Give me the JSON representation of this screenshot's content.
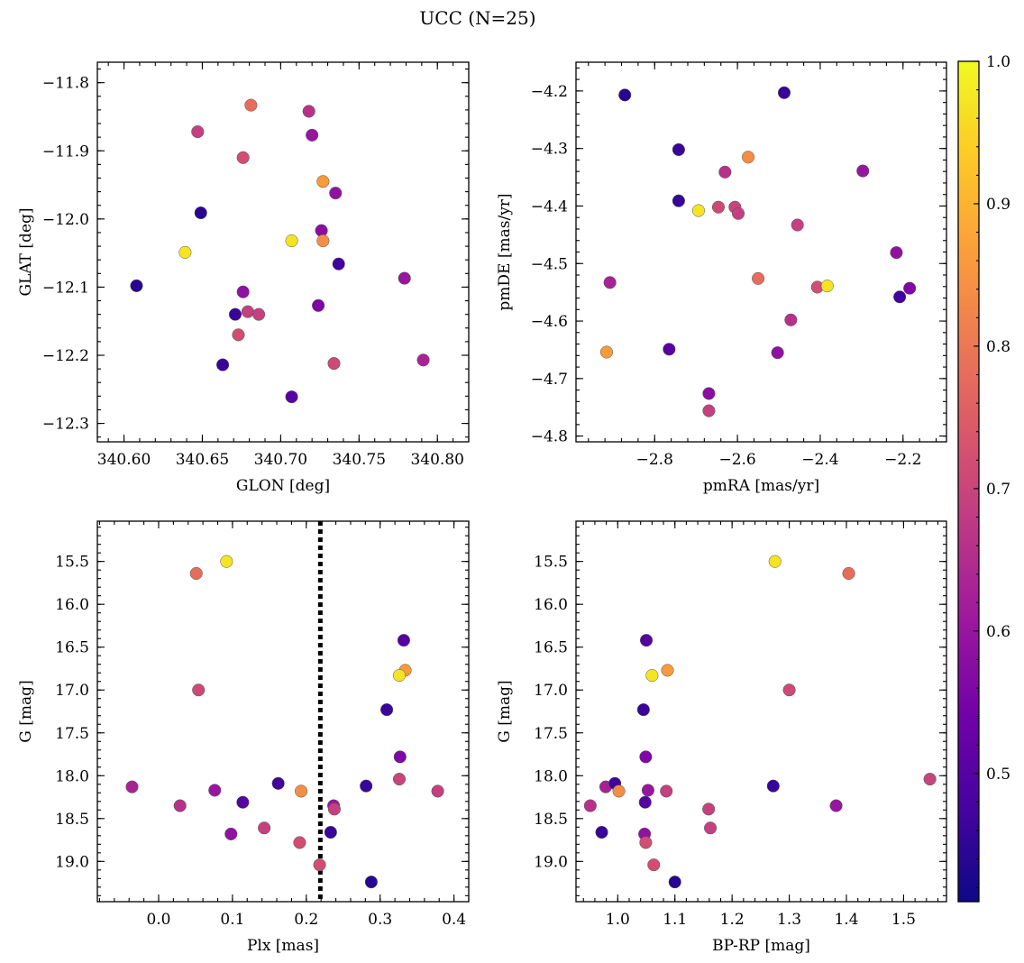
{
  "figure": {
    "title": "UCC (N=25)"
  },
  "colorbar": {
    "min": 0.41,
    "max": 1.0,
    "ticks": [
      0.5,
      0.6,
      0.7,
      0.8,
      0.9,
      1.0
    ],
    "tick_labels": [
      "0.5",
      "0.6",
      "0.7",
      "0.8",
      "0.9",
      "1.0"
    ],
    "colormap": "plasma",
    "colormap_stops": [
      "#0d0887",
      "#46039f",
      "#7201a8",
      "#9c179e",
      "#bd3786",
      "#d8576b",
      "#ed7953",
      "#fb9f3a",
      "#fdca26",
      "#f0f921"
    ]
  },
  "chart_data": [
    {
      "type": "scatter",
      "title": "",
      "xlabel": "GLON [deg]",
      "ylabel": "GLAT [deg]",
      "xlim": [
        340.583,
        340.82
      ],
      "ylim": [
        -12.327,
        -11.77
      ],
      "y_inverted": false,
      "xticks": [
        340.6,
        340.65,
        340.7,
        340.75,
        340.8
      ],
      "xtick_labels": [
        "340.60",
        "340.65",
        "340.70",
        "340.75",
        "340.80"
      ],
      "yticks": [
        -11.8,
        -11.9,
        -12.0,
        -12.1,
        -12.2,
        -12.3
      ],
      "ytick_labels": [
        "−11.8",
        "−11.9",
        "−12.0",
        "−12.1",
        "−12.2",
        "−12.3"
      ],
      "points": [
        {
          "x": 340.681,
          "y": -11.833,
          "c": 0.78
        },
        {
          "x": 340.718,
          "y": -11.842,
          "c": 0.66
        },
        {
          "x": 340.647,
          "y": -11.872,
          "c": 0.69
        },
        {
          "x": 340.72,
          "y": -11.877,
          "c": 0.6
        },
        {
          "x": 340.676,
          "y": -11.91,
          "c": 0.72
        },
        {
          "x": 340.727,
          "y": -11.945,
          "c": 0.86
        },
        {
          "x": 340.735,
          "y": -11.962,
          "c": 0.59
        },
        {
          "x": 340.649,
          "y": -11.991,
          "c": 0.44
        },
        {
          "x": 340.726,
          "y": -12.017,
          "c": 0.58
        },
        {
          "x": 340.639,
          "y": -12.049,
          "c": 0.97
        },
        {
          "x": 340.707,
          "y": -12.032,
          "c": 0.97
        },
        {
          "x": 340.727,
          "y": -12.032,
          "c": 0.84
        },
        {
          "x": 340.737,
          "y": -12.066,
          "c": 0.47
        },
        {
          "x": 340.608,
          "y": -12.098,
          "c": 0.44
        },
        {
          "x": 340.779,
          "y": -12.087,
          "c": 0.6
        },
        {
          "x": 340.676,
          "y": -12.107,
          "c": 0.59
        },
        {
          "x": 340.671,
          "y": -12.14,
          "c": 0.46
        },
        {
          "x": 340.679,
          "y": -12.136,
          "c": 0.69
        },
        {
          "x": 340.686,
          "y": -12.14,
          "c": 0.69
        },
        {
          "x": 340.724,
          "y": -12.127,
          "c": 0.56
        },
        {
          "x": 340.673,
          "y": -12.17,
          "c": 0.72
        },
        {
          "x": 340.663,
          "y": -12.214,
          "c": 0.46
        },
        {
          "x": 340.734,
          "y": -12.212,
          "c": 0.71
        },
        {
          "x": 340.791,
          "y": -12.207,
          "c": 0.63
        },
        {
          "x": 340.707,
          "y": -12.261,
          "c": 0.5
        }
      ]
    },
    {
      "type": "scatter",
      "title": "",
      "xlabel": "pmRA [mas/yr]",
      "ylabel": "pmDE [mas/yr]",
      "xlim": [
        -2.99,
        -2.095
      ],
      "ylim": [
        -4.81,
        -4.15
      ],
      "y_inverted": false,
      "xticks": [
        -2.8,
        -2.6,
        -2.4,
        -2.2
      ],
      "xtick_labels": [
        "−2.8",
        "−2.6",
        "−2.4",
        "−2.2"
      ],
      "yticks": [
        -4.2,
        -4.3,
        -4.4,
        -4.5,
        -4.6,
        -4.7,
        -4.8
      ],
      "ytick_labels": [
        "−4.2",
        "−4.3",
        "−4.4",
        "−4.5",
        "−4.6",
        "−4.7",
        "−4.8"
      ],
      "points": [
        {
          "x": -2.872,
          "y": -4.207,
          "c": 0.44
        },
        {
          "x": -2.487,
          "y": -4.203,
          "c": 0.46
        },
        {
          "x": -2.742,
          "y": -4.302,
          "c": 0.46
        },
        {
          "x": -2.574,
          "y": -4.315,
          "c": 0.84
        },
        {
          "x": -2.297,
          "y": -4.339,
          "c": 0.6
        },
        {
          "x": -2.63,
          "y": -4.341,
          "c": 0.66
        },
        {
          "x": -2.742,
          "y": -4.391,
          "c": 0.46
        },
        {
          "x": -2.694,
          "y": -4.408,
          "c": 0.97
        },
        {
          "x": -2.646,
          "y": -4.402,
          "c": 0.71
        },
        {
          "x": -2.606,
          "y": -4.402,
          "c": 0.7
        },
        {
          "x": -2.598,
          "y": -4.413,
          "c": 0.69
        },
        {
          "x": -2.455,
          "y": -4.433,
          "c": 0.69
        },
        {
          "x": -2.216,
          "y": -4.481,
          "c": 0.59
        },
        {
          "x": -2.55,
          "y": -4.526,
          "c": 0.78
        },
        {
          "x": -2.908,
          "y": -4.533,
          "c": 0.63
        },
        {
          "x": -2.407,
          "y": -4.541,
          "c": 0.72
        },
        {
          "x": -2.383,
          "y": -4.539,
          "c": 0.97
        },
        {
          "x": -2.184,
          "y": -4.543,
          "c": 0.56
        },
        {
          "x": -2.208,
          "y": -4.558,
          "c": 0.47
        },
        {
          "x": -2.471,
          "y": -4.598,
          "c": 0.66
        },
        {
          "x": -2.765,
          "y": -4.649,
          "c": 0.5
        },
        {
          "x": -2.916,
          "y": -4.654,
          "c": 0.86
        },
        {
          "x": -2.503,
          "y": -4.655,
          "c": 0.59
        },
        {
          "x": -2.669,
          "y": -4.726,
          "c": 0.58
        },
        {
          "x": -2.669,
          "y": -4.756,
          "c": 0.69
        }
      ]
    },
    {
      "type": "scatter",
      "title": "",
      "xlabel": "Plx [mas]",
      "ylabel": "G [mag]",
      "xlim": [
        -0.083,
        0.42
      ],
      "ylim": [
        15.03,
        19.47
      ],
      "y_inverted": true,
      "xticks": [
        0.0,
        0.1,
        0.2,
        0.3,
        0.4
      ],
      "xtick_labels": [
        "0.0",
        "0.1",
        "0.2",
        "0.3",
        "0.4"
      ],
      "yticks": [
        15.5,
        16.0,
        16.5,
        17.0,
        17.5,
        18.0,
        18.5,
        19.0
      ],
      "ytick_labels": [
        "15.5",
        "16.0",
        "16.5",
        "17.0",
        "17.5",
        "18.0",
        "18.5",
        "19.0"
      ],
      "reference_line": {
        "x": 0.219,
        "style": "dotted"
      },
      "points": [
        {
          "x": 0.051,
          "y": 15.64,
          "c": 0.78
        },
        {
          "x": 0.092,
          "y": 15.5,
          "c": 0.97
        },
        {
          "x": 0.332,
          "y": 16.42,
          "c": 0.5
        },
        {
          "x": 0.334,
          "y": 16.77,
          "c": 0.86
        },
        {
          "x": 0.326,
          "y": 16.83,
          "c": 0.97
        },
        {
          "x": 0.054,
          "y": 17.0,
          "c": 0.71
        },
        {
          "x": 0.309,
          "y": 17.23,
          "c": 0.46
        },
        {
          "x": 0.327,
          "y": 17.78,
          "c": 0.56
        },
        {
          "x": 0.326,
          "y": 18.04,
          "c": 0.7
        },
        {
          "x": -0.036,
          "y": 18.13,
          "c": 0.63
        },
        {
          "x": 0.162,
          "y": 18.09,
          "c": 0.47
        },
        {
          "x": 0.281,
          "y": 18.12,
          "c": 0.46
        },
        {
          "x": 0.193,
          "y": 18.18,
          "c": 0.84
        },
        {
          "x": 0.076,
          "y": 18.17,
          "c": 0.6
        },
        {
          "x": 0.378,
          "y": 18.18,
          "c": 0.69
        },
        {
          "x": 0.029,
          "y": 18.35,
          "c": 0.66
        },
        {
          "x": 0.114,
          "y": 18.31,
          "c": 0.5
        },
        {
          "x": 0.237,
          "y": 18.35,
          "c": 0.6
        },
        {
          "x": 0.238,
          "y": 18.39,
          "c": 0.69
        },
        {
          "x": 0.143,
          "y": 18.61,
          "c": 0.69
        },
        {
          "x": 0.098,
          "y": 18.68,
          "c": 0.59
        },
        {
          "x": 0.233,
          "y": 18.66,
          "c": 0.46
        },
        {
          "x": 0.191,
          "y": 18.78,
          "c": 0.72
        },
        {
          "x": 0.218,
          "y": 19.04,
          "c": 0.72
        },
        {
          "x": 0.288,
          "y": 19.24,
          "c": 0.44
        }
      ]
    },
    {
      "type": "scatter",
      "title": "",
      "xlabel": "BP-RP [mag]",
      "ylabel": "G [mag]",
      "xlim": [
        0.927,
        1.575
      ],
      "ylim": [
        15.03,
        19.47
      ],
      "y_inverted": true,
      "xticks": [
        1.0,
        1.1,
        1.2,
        1.3,
        1.4,
        1.5
      ],
      "xtick_labels": [
        "1.0",
        "1.1",
        "1.2",
        "1.3",
        "1.4",
        "1.5"
      ],
      "yticks": [
        15.5,
        16.0,
        16.5,
        17.0,
        17.5,
        18.0,
        18.5,
        19.0
      ],
      "ytick_labels": [
        "15.5",
        "16.0",
        "16.5",
        "17.0",
        "17.5",
        "18.0",
        "18.5",
        "19.0"
      ],
      "points": [
        {
          "x": 1.275,
          "y": 15.5,
          "c": 0.97
        },
        {
          "x": 1.404,
          "y": 15.64,
          "c": 0.78
        },
        {
          "x": 1.05,
          "y": 16.42,
          "c": 0.5
        },
        {
          "x": 1.087,
          "y": 16.77,
          "c": 0.86
        },
        {
          "x": 1.06,
          "y": 16.83,
          "c": 0.97
        },
        {
          "x": 1.3,
          "y": 17.0,
          "c": 0.71
        },
        {
          "x": 1.045,
          "y": 17.23,
          "c": 0.46
        },
        {
          "x": 1.049,
          "y": 17.78,
          "c": 0.56
        },
        {
          "x": 1.546,
          "y": 18.04,
          "c": 0.7
        },
        {
          "x": 0.979,
          "y": 18.13,
          "c": 0.63
        },
        {
          "x": 0.995,
          "y": 18.09,
          "c": 0.47
        },
        {
          "x": 1.272,
          "y": 18.12,
          "c": 0.46
        },
        {
          "x": 1.002,
          "y": 18.18,
          "c": 0.84
        },
        {
          "x": 1.053,
          "y": 18.17,
          "c": 0.6
        },
        {
          "x": 1.085,
          "y": 18.18,
          "c": 0.69
        },
        {
          "x": 0.952,
          "y": 18.35,
          "c": 0.66
        },
        {
          "x": 1.048,
          "y": 18.31,
          "c": 0.5
        },
        {
          "x": 1.382,
          "y": 18.35,
          "c": 0.6
        },
        {
          "x": 1.159,
          "y": 18.39,
          "c": 0.69
        },
        {
          "x": 1.162,
          "y": 18.61,
          "c": 0.69
        },
        {
          "x": 1.047,
          "y": 18.68,
          "c": 0.59
        },
        {
          "x": 0.972,
          "y": 18.66,
          "c": 0.46
        },
        {
          "x": 1.049,
          "y": 18.78,
          "c": 0.72
        },
        {
          "x": 1.063,
          "y": 19.04,
          "c": 0.72
        },
        {
          "x": 1.1,
          "y": 19.24,
          "c": 0.44
        }
      ]
    }
  ]
}
